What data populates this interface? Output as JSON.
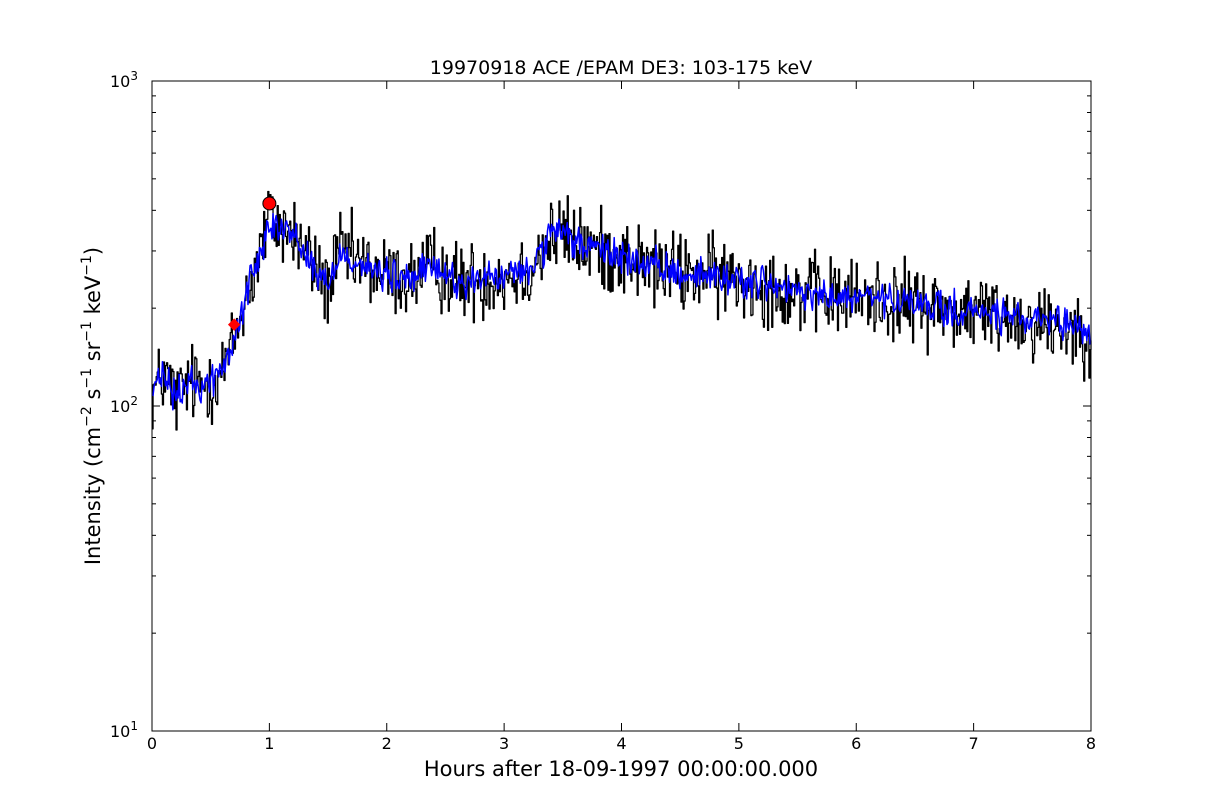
{
  "chart_data": {
    "type": "line",
    "title": "19970918 ACE /EPAM DE3: 103-175 keV",
    "xlabel": "Hours after 18-09-1997 00:00:00.000",
    "ylabel": "Intensity (cm⁻² s⁻¹ sr⁻¹ keV⁻¹)",
    "ylabel_parts": {
      "prefix": "Intensity (cm",
      "exp1": "−2",
      "s": " s",
      "exp2": "−1",
      "sr": " sr",
      "exp3": "−1",
      "kev": " keV",
      "exp4": "−1",
      "suffix": ")"
    },
    "xlim": [
      0,
      8
    ],
    "ylim": [
      10,
      1000
    ],
    "yscale": "log",
    "grid": false,
    "x_ticks": [
      0,
      1,
      2,
      3,
      4,
      5,
      6,
      7,
      8
    ],
    "x_tick_labels": [
      "0",
      "1",
      "2",
      "3",
      "4",
      "5",
      "6",
      "7",
      "8"
    ],
    "y_ticks": [
      10,
      100,
      1000
    ],
    "y_tick_labels": [
      {
        "base": "10",
        "exp": "1"
      },
      {
        "base": "10",
        "exp": "2"
      },
      {
        "base": "10",
        "exp": "3"
      }
    ],
    "series": [
      {
        "color": "#000000",
        "style": "step",
        "description_points": "raw intensity",
        "x": [
          0.0,
          0.1,
          0.2,
          0.3,
          0.4,
          0.5,
          0.6,
          0.65,
          0.7,
          0.8,
          0.9,
          0.95,
          1.0,
          1.1,
          1.2,
          1.3,
          1.4,
          1.5,
          1.6,
          1.8,
          2.0,
          2.2,
          2.4,
          2.6,
          2.8,
          3.0,
          3.2,
          3.4,
          3.5,
          3.6,
          3.8,
          4.0,
          4.2,
          4.4,
          4.6,
          4.8,
          5.0,
          5.2,
          5.4,
          5.6,
          5.8,
          6.0,
          6.2,
          6.4,
          6.6,
          6.8,
          7.0,
          7.2,
          7.4,
          7.6,
          7.8,
          8.0
        ],
        "y": [
          110,
          125,
          105,
          118,
          115,
          120,
          130,
          140,
          160,
          220,
          280,
          330,
          380,
          350,
          340,
          300,
          260,
          230,
          300,
          270,
          250,
          245,
          270,
          240,
          245,
          250,
          260,
          330,
          340,
          320,
          300,
          290,
          270,
          260,
          255,
          250,
          245,
          240,
          225,
          220,
          215,
          215,
          215,
          205,
          205,
          195,
          195,
          190,
          185,
          180,
          175,
          170
        ],
        "noise": 0.28
      },
      {
        "color": "#0000ff",
        "style": "line",
        "x": [
          0.0,
          0.1,
          0.2,
          0.3,
          0.4,
          0.5,
          0.6,
          0.65,
          0.7,
          0.8,
          0.9,
          0.95,
          1.0,
          1.1,
          1.2,
          1.3,
          1.4,
          1.5,
          1.6,
          1.8,
          2.0,
          2.2,
          2.4,
          2.6,
          2.8,
          3.0,
          3.2,
          3.4,
          3.5,
          3.6,
          3.8,
          4.0,
          4.2,
          4.4,
          4.6,
          4.8,
          5.0,
          5.2,
          5.4,
          5.6,
          5.8,
          6.0,
          6.2,
          6.4,
          6.6,
          6.8,
          7.0,
          7.2,
          7.4,
          7.6,
          7.8,
          8.0
        ],
        "y": [
          110,
          125,
          105,
          118,
          115,
          120,
          130,
          140,
          160,
          220,
          280,
          330,
          380,
          350,
          340,
          300,
          260,
          230,
          300,
          270,
          250,
          245,
          270,
          240,
          245,
          250,
          260,
          330,
          340,
          320,
          300,
          290,
          270,
          260,
          255,
          250,
          245,
          240,
          225,
          220,
          215,
          215,
          215,
          205,
          205,
          195,
          195,
          190,
          185,
          180,
          175,
          170
        ],
        "noise": 0.12
      }
    ],
    "markers": [
      {
        "x": 0.7,
        "y": 178,
        "color": "#ff0000",
        "shape": "diamond"
      },
      {
        "x": 1.0,
        "y": 420,
        "color": "#ff0000",
        "shape": "circle"
      }
    ]
  }
}
